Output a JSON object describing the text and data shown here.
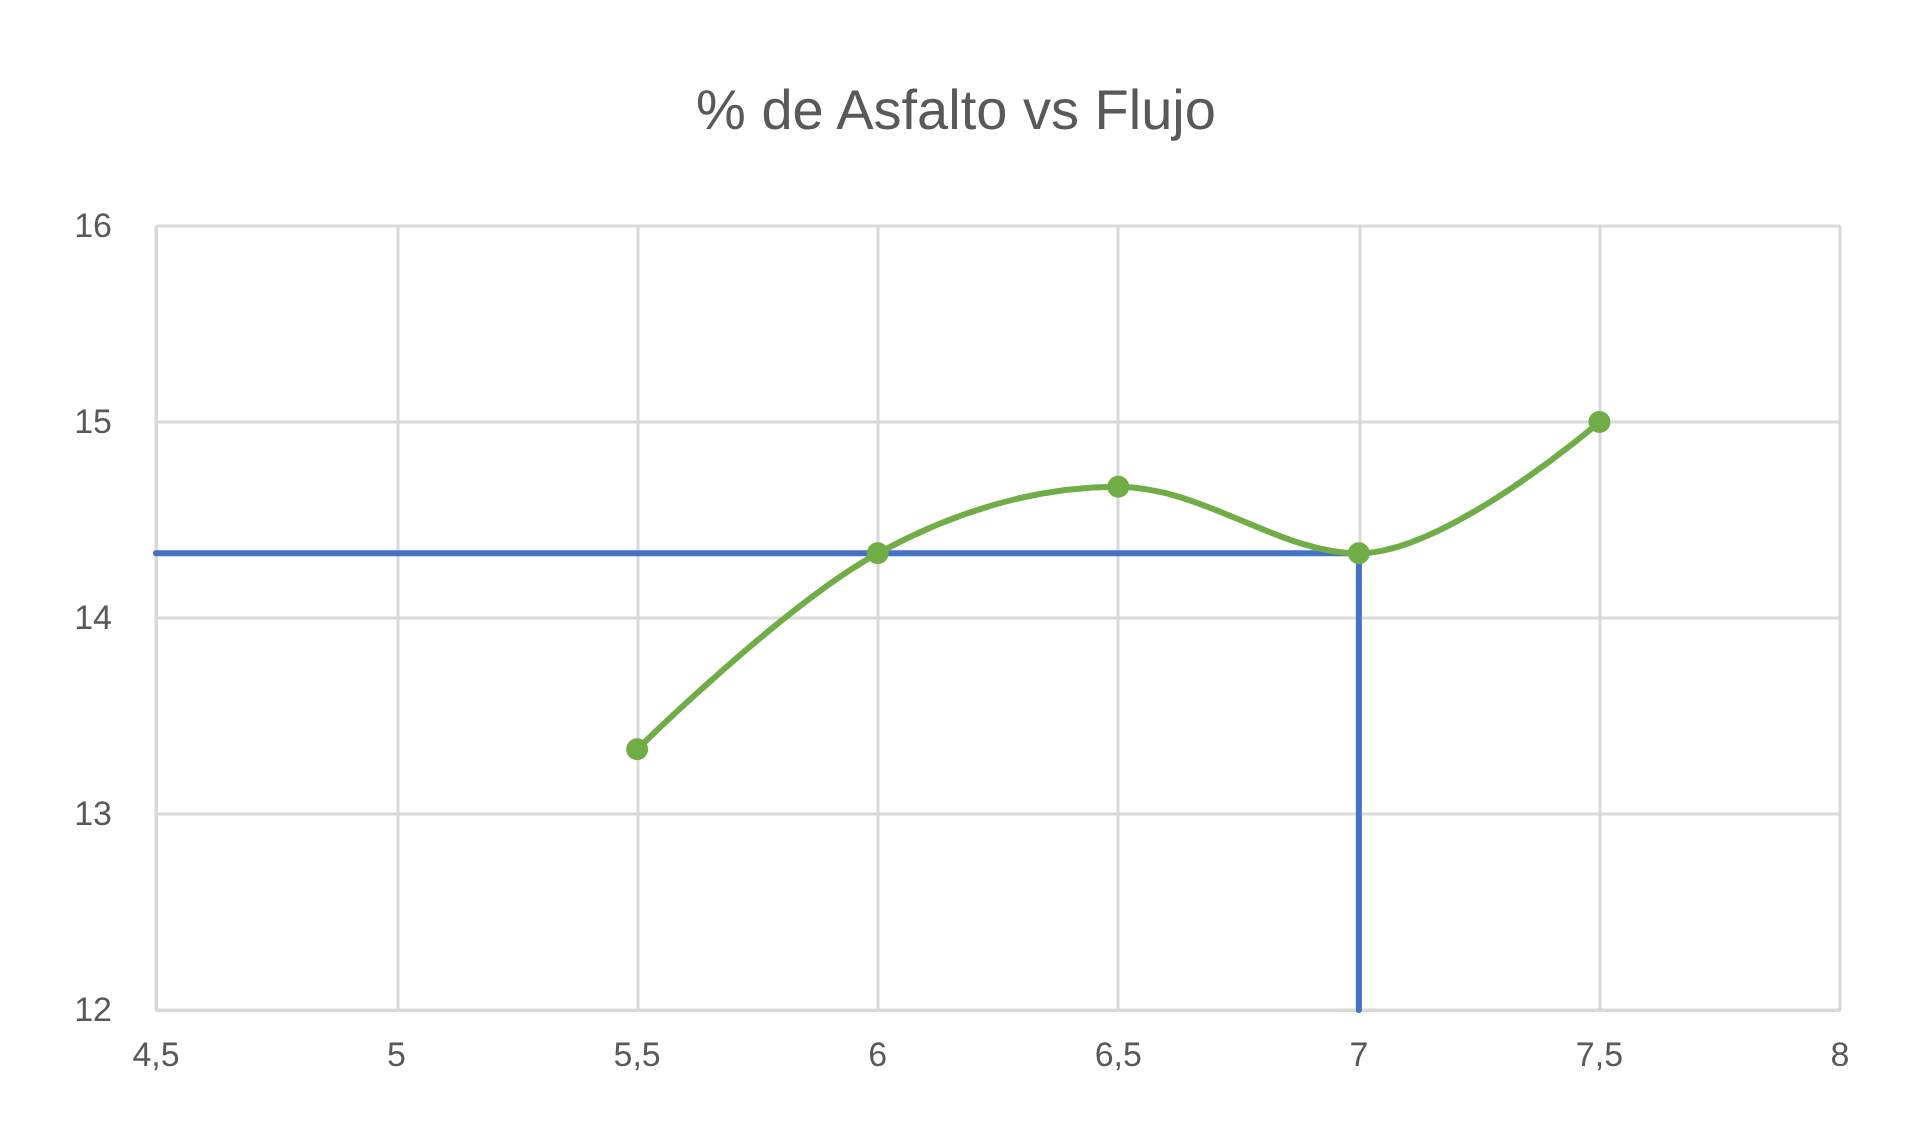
{
  "chart_data": {
    "type": "line",
    "title": "% de Asfalto vs Flujo",
    "series": [
      {
        "color": "#70ad47",
        "x": [
          5.5,
          6,
          6.5,
          7,
          7.5
        ],
        "values": [
          13.33,
          14.33,
          14.67,
          14.33,
          15
        ],
        "marker": "circle"
      },
      {
        "color": "#4472c4",
        "x": [
          4.5,
          7,
          7
        ],
        "values": [
          14.33,
          14.33,
          12
        ],
        "marker": "none"
      }
    ],
    "xlim": [
      4.5,
      8
    ],
    "xticks": [
      {
        "value": 4.5,
        "label": "4,5"
      },
      5,
      {
        "value": 5.5,
        "label": "5,5"
      },
      6,
      {
        "value": 6.5,
        "label": "6,5"
      },
      7,
      {
        "value": 7.5,
        "label": "7,5"
      },
      8
    ],
    "ylim": [
      12,
      16
    ],
    "yticks": [
      12,
      13,
      14,
      15,
      16
    ],
    "grid": true,
    "line_style": "solid"
  }
}
